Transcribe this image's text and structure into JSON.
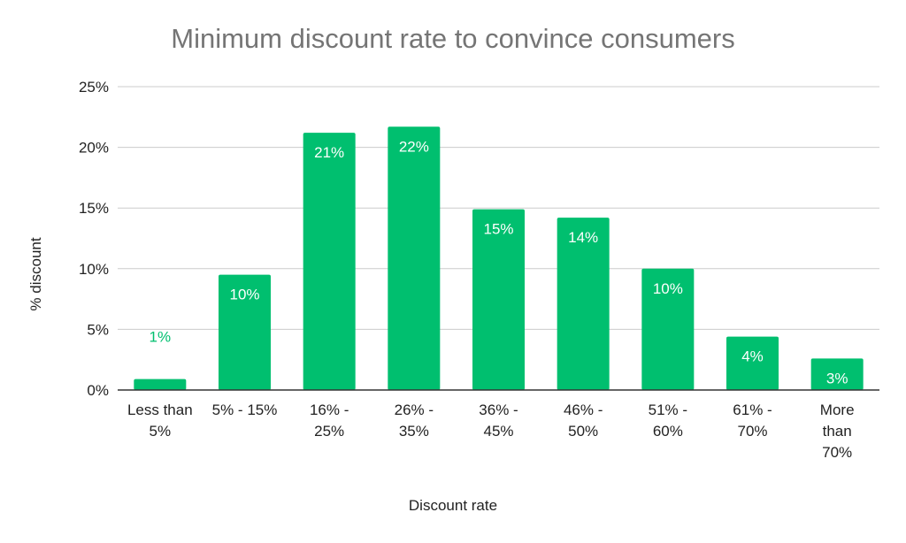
{
  "chart_data": {
    "type": "bar",
    "title": "Minimum discount rate to convince consumers",
    "xlabel": "Discount rate",
    "ylabel": "% discount",
    "ylim": [
      0,
      25
    ],
    "yticks": [
      0,
      5,
      10,
      15,
      20,
      25
    ],
    "ytick_labels": [
      "0%",
      "5%",
      "10%",
      "15%",
      "20%",
      "25%"
    ],
    "categories": [
      [
        "Less than",
        "5%"
      ],
      [
        "5% - 15%"
      ],
      [
        "16% -",
        "25%"
      ],
      [
        "26% -",
        "35%"
      ],
      [
        "36% -",
        "45%"
      ],
      [
        "46% -",
        "50%"
      ],
      [
        "51% -",
        "60%"
      ],
      [
        "61% -",
        "70%"
      ],
      [
        "More",
        "than",
        "70%"
      ]
    ],
    "values": [
      0.9,
      9.5,
      21.2,
      21.7,
      14.9,
      14.2,
      10.0,
      4.4,
      2.6
    ],
    "data_labels": [
      "1%",
      "10%",
      "21%",
      "22%",
      "15%",
      "14%",
      "10%",
      "4%",
      "3%"
    ],
    "grid": true,
    "legend": "none",
    "colors": {
      "bar": "#00bf6f",
      "label_inside": "#ffffff",
      "label_outside": "#00bf6f",
      "grid": "#cccccc",
      "axis": "#333333",
      "text": "#222222",
      "title": "#757575"
    }
  }
}
